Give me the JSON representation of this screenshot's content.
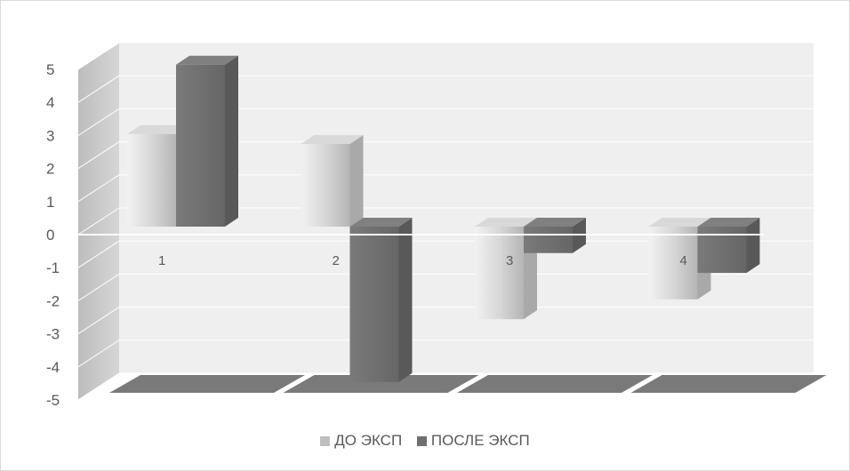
{
  "chart_data": {
    "type": "bar",
    "categories": [
      "1",
      "2",
      "3",
      "4"
    ],
    "series": [
      {
        "name": "ДО ЭКСП",
        "values": [
          2.8,
          2.5,
          -2.8,
          -2.2
        ],
        "color": "#bfbfbf"
      },
      {
        "name": "ПОСЛЕ ЭКСП",
        "values": [
          4.9,
          -4.7,
          -0.8,
          -1.4
        ],
        "color": "#6f6f6f"
      }
    ],
    "ylim": [
      -5,
      5
    ],
    "yticks": [
      "5",
      "4",
      "3",
      "2",
      "1",
      "0",
      "-1",
      "-2",
      "-3",
      "-4",
      "-5"
    ],
    "grid": true,
    "legend_position": "bottom",
    "style": "3d-clustered-column"
  }
}
